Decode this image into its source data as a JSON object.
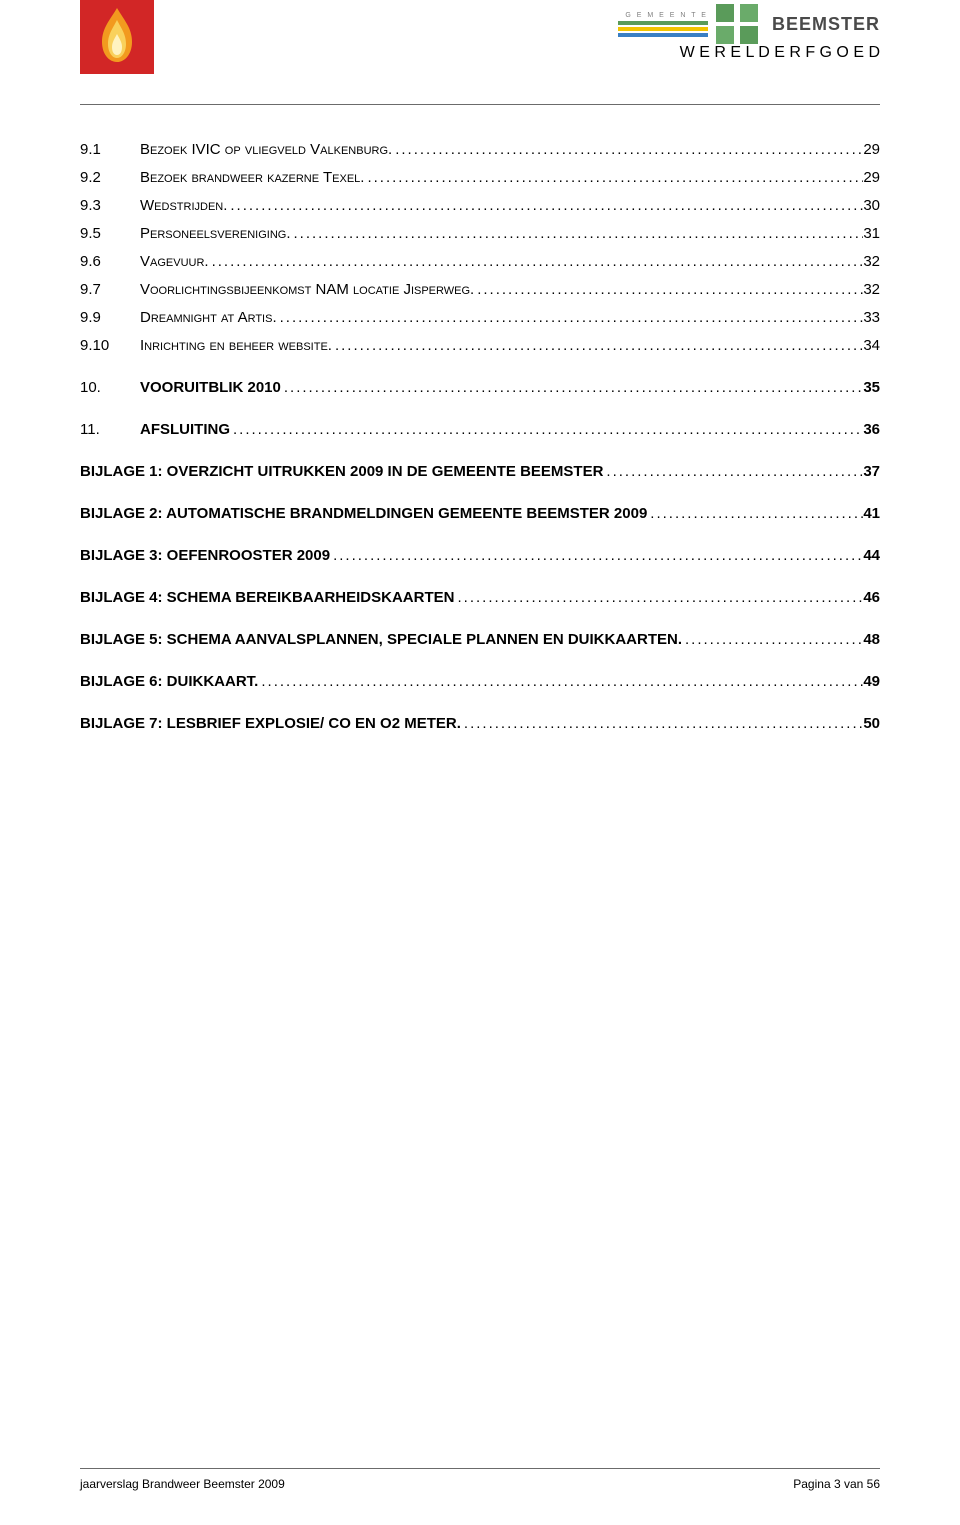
{
  "header": {
    "left_logo_bg": "#d22626",
    "right_blocks": {
      "c1": "#5a9b5a",
      "c2": "#6aab6a"
    },
    "stripes": [
      "#5a9b5a",
      "#f2c400",
      "#3a7fc4"
    ],
    "brand_text": "BEEMSTER",
    "brand_sub": "W E R E L D E R F G O E D",
    "gemeente": "G E M E E N T E"
  },
  "toc": [
    {
      "num": "9.1",
      "text": "Bezoek IVIC op vliegveld Valkenburg.",
      "page": "29",
      "style": "sc",
      "indent": 0
    },
    {
      "num": "9.2",
      "text": "Bezoek brandweer kazerne Texel.",
      "page": "29",
      "style": "sc",
      "indent": 0
    },
    {
      "num": "9.3",
      "text": "Wedstrijden.",
      "page": "30",
      "style": "sc",
      "indent": 0
    },
    {
      "num": "9.5",
      "text": "Personeelsvereniging.",
      "page": "31",
      "style": "sc",
      "indent": 0
    },
    {
      "num": "9.6",
      "text": "Vagevuur.",
      "page": "32",
      "style": "sc",
      "indent": 0
    },
    {
      "num": "9.7",
      "text": "Voorlichtingsbijeenkomst NAM locatie Jisperweg.",
      "page": "32",
      "style": "sc",
      "indent": 0
    },
    {
      "num": "9.9",
      "text": "Dreamnight at Artis.",
      "page": "33",
      "style": "sc",
      "indent": 0
    },
    {
      "num": "9.10",
      "text": "Inrichting en beheer website.",
      "page": "34",
      "style": "sc",
      "indent": 0,
      "space_after": true
    },
    {
      "num": "10.",
      "text": "VOORUITBLIK 2010",
      "page": "35",
      "style": "bold",
      "indent": 0,
      "space_after": true
    },
    {
      "num": "11.",
      "text": "AFSLUITING",
      "page": "36",
      "style": "bold",
      "indent": 0,
      "space_after": true
    },
    {
      "num": "",
      "text": "BIJLAGE 1: OVERZICHT UITRUKKEN 2009 IN DE GEMEENTE BEEMSTER",
      "page": "37",
      "style": "bold",
      "indent": 0,
      "space_after": true
    },
    {
      "num": "",
      "text": "BIJLAGE 2: AUTOMATISCHE BRANDMELDINGEN GEMEENTE BEEMSTER 2009",
      "page": "41",
      "style": "bold",
      "indent": 0,
      "space_after": true
    },
    {
      "num": "",
      "text": "BIJLAGE 3:  OEFENROOSTER 2009",
      "page": "44",
      "style": "bold",
      "indent": 0,
      "space_after": true
    },
    {
      "num": "",
      "text": "BIJLAGE 4:  SCHEMA BEREIKBAARHEIDSKAARTEN",
      "page": "46",
      "style": "bold",
      "indent": 0,
      "space_after": true
    },
    {
      "num": "",
      "text": "BIJLAGE 5:  SCHEMA AANVALSPLANNEN, SPECIALE PLANNEN EN DUIKKAARTEN.",
      "page": "48",
      "style": "bold",
      "indent": 0,
      "space_after": true
    },
    {
      "num": "",
      "text": "BIJLAGE 6: DUIKKAART.",
      "page": "49",
      "style": "bold",
      "indent": 0,
      "space_after": true
    },
    {
      "num": "",
      "text": "BIJLAGE 7:  LESBRIEF EXPLOSIE/ CO EN O2 METER.",
      "page": "50",
      "style": "bold",
      "indent": 0
    }
  ],
  "footer": {
    "left": "jaarverslag Brandweer Beemster 2009",
    "right": "Pagina 3 van 56"
  }
}
